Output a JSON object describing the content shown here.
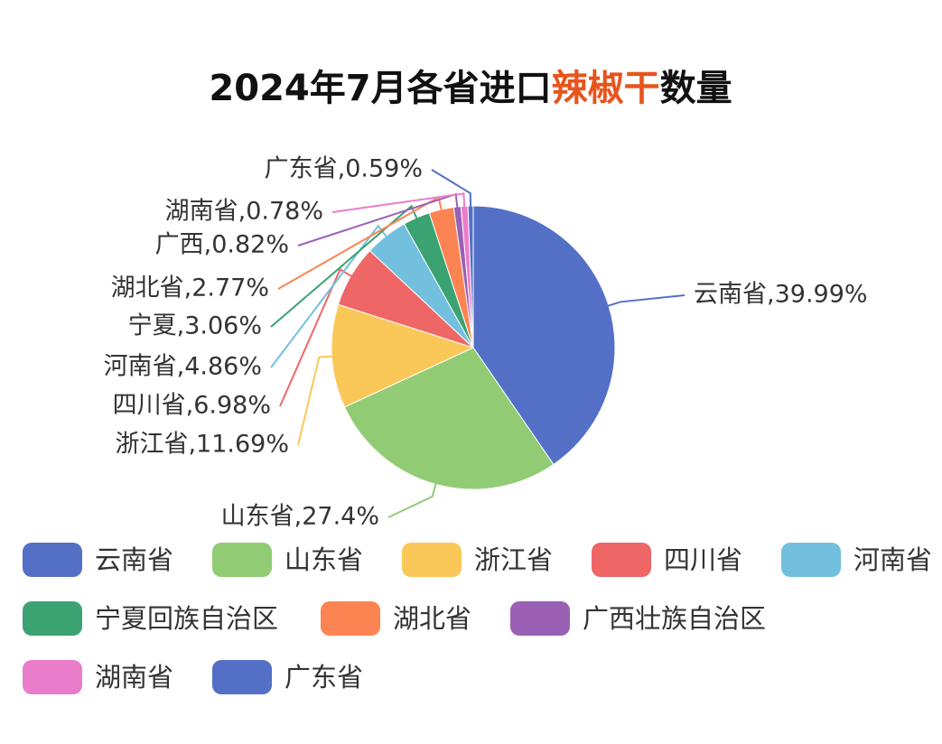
{
  "chart_data": {
    "type": "pie",
    "title": [
      "2024年7月各省进口",
      "辣椒干",
      "数量"
    ],
    "title_colors": [
      "#111111",
      "#e8541c",
      "#111111"
    ],
    "categories": [
      "云南省",
      "山东省",
      "浙江省",
      "四川省",
      "河南省",
      "宁夏回族自治区",
      "湖北省",
      "广西壮族自治区",
      "湖南省",
      "广东省"
    ],
    "values": [
      39.99,
      27.4,
      11.69,
      6.98,
      4.86,
      3.06,
      2.77,
      0.82,
      0.78,
      0.59
    ],
    "value_labels": [
      "云南省,39.99%",
      "山东省,27.4%",
      "浙江省,11.69%",
      "四川省,6.98%",
      "河南省,4.86%",
      "宁夏,3.06%",
      "湖北省,2.77%",
      "广西,0.82%",
      "湖南省,0.78%",
      "广东省,0.59%"
    ],
    "colors": [
      "#5470c6",
      "#91cc75",
      "#fac858",
      "#ee6666",
      "#73c0de",
      "#3ba272",
      "#fc8452",
      "#9a60b4",
      "#ea7ccc",
      "#5470c6"
    ],
    "legend": "bottom"
  }
}
